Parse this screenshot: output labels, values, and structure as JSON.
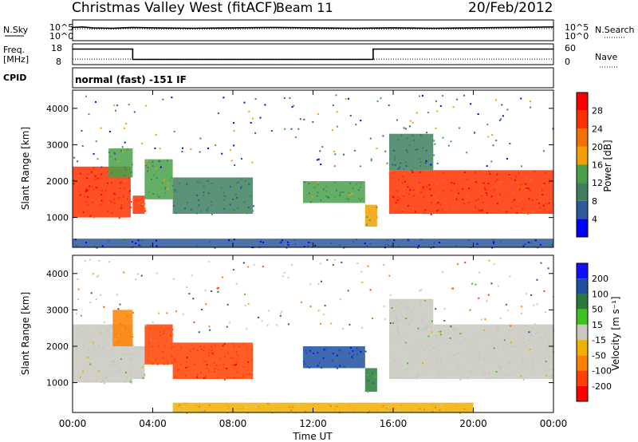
{
  "header": {
    "station": "Christmas Valley West (fitACF)",
    "beam": "Beam 11",
    "date": "20/Feb/2012"
  },
  "left_labels": {
    "nsky": "N.Sky",
    "freq": "Freq.",
    "freq_unit": "[MHz]",
    "cpid": "CPID"
  },
  "right_labels": {
    "nsearch": "N.Search",
    "nave": "Nave"
  },
  "ticks": {
    "noise_left": [
      "10^5",
      "10^0"
    ],
    "noise_right": [
      "10^5",
      "10^0"
    ],
    "freq_left": [
      "18",
      "8"
    ],
    "nave_right": [
      "60",
      "0"
    ]
  },
  "cpid_text": "normal (fast) -151 IF",
  "colors": {
    "power_scale": [
      "#0000ff",
      "#2d5b9a",
      "#3f7f5f",
      "#49a04a",
      "#f0a000",
      "#f57000",
      "#ff3000",
      "#ff0000"
    ],
    "velocity_scale": [
      "#ff0000",
      "#ff4000",
      "#ff8000",
      "#f0b000",
      "#c8c8c0",
      "#40c020",
      "#2a7a3a",
      "#204fa0",
      "#1010ff"
    ],
    "ground_scatter": "#c8c8c0"
  },
  "chart_data": [
    {
      "type": "line",
      "name": "noise-panel",
      "x": [
        0,
        0.5,
        1,
        2,
        3,
        4,
        6,
        8,
        10,
        12,
        14,
        16,
        18,
        20,
        22,
        24
      ],
      "series": [
        {
          "name": "N.Sky",
          "values": [
            3.2,
            3.3,
            3.1,
            3.0,
            3.2,
            3.1,
            3.0,
            3.1,
            3.2,
            3.1,
            3.0,
            3.1,
            3.0,
            3.1,
            3.2,
            3.3
          ]
        },
        {
          "name": "N.Search",
          "values": [
            2.8,
            2.9,
            2.8,
            2.8,
            2.9,
            2.8,
            2.8,
            2.8,
            2.9,
            2.8,
            2.8,
            2.8,
            2.8,
            2.8,
            2.9,
            2.9
          ]
        }
      ],
      "ylim": [
        0,
        5
      ],
      "ylabel_left": "N.Sky",
      "ylabel_right": "N.Search"
    },
    {
      "type": "line",
      "name": "frequency-panel",
      "x": [
        0,
        3.0,
        3.0,
        15.0,
        15.0,
        24
      ],
      "series": [
        {
          "name": "Freq.",
          "values": [
            15.5,
            15.5,
            10.5,
            10.5,
            15.5,
            15.5
          ]
        },
        {
          "name": "Nave",
          "values": [
            16,
            16,
            16,
            16,
            16,
            16
          ]
        }
      ],
      "ylim": [
        8,
        18
      ],
      "y2lim": [
        0,
        60
      ],
      "ylabel": "Freq. [MHz]"
    },
    {
      "type": "heatmap",
      "name": "power",
      "xlabel": "",
      "ylabel": "Slant Range [km]",
      "xlim": [
        0,
        24
      ],
      "ylim": [
        180,
        4500
      ],
      "yticks": [
        1000,
        2000,
        3000,
        4000
      ],
      "colorbar": {
        "label": "Power [dB]",
        "range": [
          0,
          32
        ],
        "ticks": [
          4,
          8,
          12,
          16,
          20,
          24,
          28
        ]
      },
      "echo_regions": [
        {
          "t": [
            0.0,
            2.9
          ],
          "r": [
            1000,
            2400
          ],
          "value": 26
        },
        {
          "t": [
            1.8,
            3.0
          ],
          "r": [
            2100,
            2900
          ],
          "value": 12
        },
        {
          "t": [
            3.0,
            3.6
          ],
          "r": [
            1100,
            1600
          ],
          "value": 24
        },
        {
          "t": [
            3.6,
            5.0
          ],
          "r": [
            1500,
            2600
          ],
          "value": 14
        },
        {
          "t": [
            5.0,
            9.0
          ],
          "r": [
            1100,
            2100
          ],
          "value": 10
        },
        {
          "t": [
            11.5,
            14.6
          ],
          "r": [
            1400,
            2000
          ],
          "value": 12
        },
        {
          "t": [
            14.6,
            15.2
          ],
          "r": [
            750,
            1350
          ],
          "value": 18
        },
        {
          "t": [
            15.8,
            24.0
          ],
          "r": [
            1100,
            2300
          ],
          "value": 26
        },
        {
          "t": [
            15.8,
            18.0
          ],
          "r": [
            2300,
            3300
          ],
          "value": 10
        },
        {
          "t": [
            0.0,
            24.0
          ],
          "r": [
            180,
            420
          ],
          "value": 6
        }
      ]
    },
    {
      "type": "heatmap",
      "name": "velocity",
      "xlabel": "Time UT",
      "ylabel": "Slant Range [km]",
      "xlim": [
        0,
        24
      ],
      "ylim": [
        180,
        4500
      ],
      "yticks": [
        1000,
        2000,
        3000,
        4000
      ],
      "xticks": [
        "00:00",
        "04:00",
        "08:00",
        "12:00",
        "16:00",
        "20:00",
        "00:00"
      ],
      "colorbar": {
        "label": "Velocity [m s⁻¹]",
        "ticks": [
          200,
          100,
          50,
          15,
          -15,
          -50,
          -100,
          -200
        ]
      },
      "echo_regions": [
        {
          "t": [
            0.0,
            3.0
          ],
          "r": [
            1000,
            2600
          ],
          "value": 0,
          "ground_scatter": true
        },
        {
          "t": [
            2.0,
            3.0
          ],
          "r": [
            2000,
            3000
          ],
          "value": -60
        },
        {
          "t": [
            3.0,
            3.6
          ],
          "r": [
            1100,
            2000
          ],
          "value": 0,
          "ground_scatter": true
        },
        {
          "t": [
            3.6,
            5.0
          ],
          "r": [
            1500,
            2600
          ],
          "value": -120
        },
        {
          "t": [
            5.0,
            9.0
          ],
          "r": [
            1100,
            2100
          ],
          "value": -170
        },
        {
          "t": [
            11.5,
            14.6
          ],
          "r": [
            1400,
            2000
          ],
          "value": 180
        },
        {
          "t": [
            14.6,
            15.2
          ],
          "r": [
            750,
            1400
          ],
          "value": 60
        },
        {
          "t": [
            15.8,
            24.0
          ],
          "r": [
            1100,
            2600
          ],
          "value": 0,
          "ground_scatter": true
        },
        {
          "t": [
            15.8,
            18.0
          ],
          "r": [
            2600,
            3300
          ],
          "value": 0,
          "ground_scatter": true
        },
        {
          "t": [
            5.0,
            20.0
          ],
          "r": [
            180,
            450
          ],
          "value": -30
        }
      ]
    }
  ]
}
